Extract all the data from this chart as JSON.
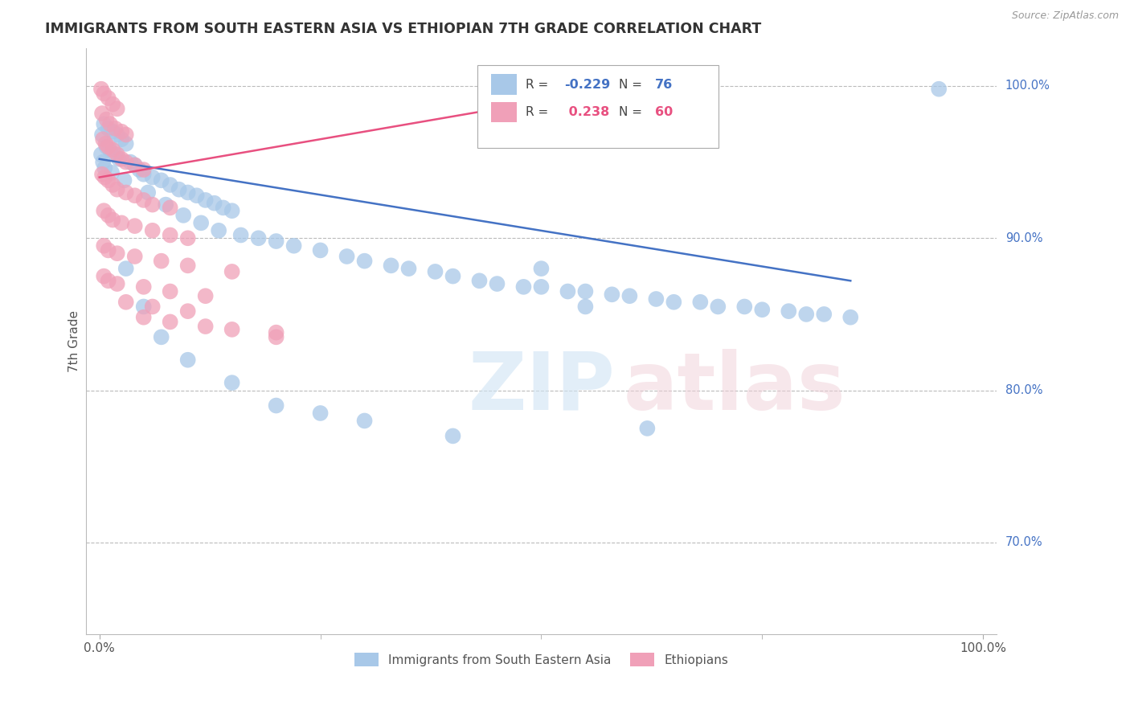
{
  "title": "IMMIGRANTS FROM SOUTH EASTERN ASIA VS ETHIOPIAN 7TH GRADE CORRELATION CHART",
  "source": "Source: ZipAtlas.com",
  "ylabel": "7th Grade",
  "legend1_label": "Immigrants from South Eastern Asia",
  "legend2_label": "Ethiopians",
  "R1": -0.229,
  "N1": 76,
  "R2": 0.238,
  "N2": 60,
  "color_blue": "#A8C8E8",
  "color_pink": "#F0A0B8",
  "color_blue_line": "#4472C4",
  "color_pink_line": "#E85080",
  "color_R_blue": "#4472C4",
  "color_R_pink": "#E85080",
  "blue_points": [
    [
      0.5,
      97.5
    ],
    [
      1.0,
      97.2
    ],
    [
      1.5,
      97.0
    ],
    [
      2.0,
      96.8
    ],
    [
      2.5,
      96.5
    ],
    [
      3.0,
      96.2
    ],
    [
      0.3,
      96.8
    ],
    [
      0.8,
      96.0
    ],
    [
      1.2,
      95.8
    ],
    [
      1.8,
      95.5
    ],
    [
      2.2,
      95.2
    ],
    [
      3.5,
      95.0
    ],
    [
      4.0,
      94.8
    ],
    [
      4.5,
      94.5
    ],
    [
      5.0,
      94.2
    ],
    [
      6.0,
      94.0
    ],
    [
      7.0,
      93.8
    ],
    [
      8.0,
      93.5
    ],
    [
      9.0,
      93.2
    ],
    [
      10.0,
      93.0
    ],
    [
      11.0,
      92.8
    ],
    [
      12.0,
      92.5
    ],
    [
      13.0,
      92.3
    ],
    [
      14.0,
      92.0
    ],
    [
      15.0,
      91.8
    ],
    [
      0.2,
      95.5
    ],
    [
      0.4,
      95.0
    ],
    [
      0.6,
      94.6
    ],
    [
      1.4,
      94.3
    ],
    [
      2.8,
      93.8
    ],
    [
      5.5,
      93.0
    ],
    [
      7.5,
      92.2
    ],
    [
      9.5,
      91.5
    ],
    [
      11.5,
      91.0
    ],
    [
      13.5,
      90.5
    ],
    [
      16.0,
      90.2
    ],
    [
      18.0,
      90.0
    ],
    [
      20.0,
      89.8
    ],
    [
      22.0,
      89.5
    ],
    [
      25.0,
      89.2
    ],
    [
      28.0,
      88.8
    ],
    [
      30.0,
      88.5
    ],
    [
      33.0,
      88.2
    ],
    [
      35.0,
      88.0
    ],
    [
      38.0,
      87.8
    ],
    [
      40.0,
      87.5
    ],
    [
      43.0,
      87.2
    ],
    [
      45.0,
      87.0
    ],
    [
      48.0,
      86.8
    ],
    [
      50.0,
      86.8
    ],
    [
      53.0,
      86.5
    ],
    [
      55.0,
      86.5
    ],
    [
      58.0,
      86.3
    ],
    [
      60.0,
      86.2
    ],
    [
      63.0,
      86.0
    ],
    [
      65.0,
      85.8
    ],
    [
      68.0,
      85.8
    ],
    [
      70.0,
      85.5
    ],
    [
      73.0,
      85.5
    ],
    [
      75.0,
      85.3
    ],
    [
      78.0,
      85.2
    ],
    [
      80.0,
      85.0
    ],
    [
      82.0,
      85.0
    ],
    [
      85.0,
      84.8
    ],
    [
      95.0,
      99.8
    ],
    [
      3.0,
      88.0
    ],
    [
      5.0,
      85.5
    ],
    [
      7.0,
      83.5
    ],
    [
      10.0,
      82.0
    ],
    [
      15.0,
      80.5
    ],
    [
      20.0,
      79.0
    ],
    [
      25.0,
      78.5
    ],
    [
      30.0,
      78.0
    ],
    [
      40.0,
      77.0
    ],
    [
      50.0,
      88.0
    ],
    [
      55.0,
      85.5
    ],
    [
      62.0,
      77.5
    ]
  ],
  "pink_points": [
    [
      0.2,
      99.8
    ],
    [
      0.5,
      99.5
    ],
    [
      1.0,
      99.2
    ],
    [
      1.5,
      98.8
    ],
    [
      2.0,
      98.5
    ],
    [
      0.3,
      98.2
    ],
    [
      0.8,
      97.8
    ],
    [
      1.2,
      97.5
    ],
    [
      1.8,
      97.2
    ],
    [
      2.5,
      97.0
    ],
    [
      3.0,
      96.8
    ],
    [
      0.4,
      96.5
    ],
    [
      0.7,
      96.2
    ],
    [
      1.0,
      96.0
    ],
    [
      1.5,
      95.8
    ],
    [
      2.0,
      95.5
    ],
    [
      2.5,
      95.2
    ],
    [
      3.0,
      95.0
    ],
    [
      4.0,
      94.8
    ],
    [
      5.0,
      94.5
    ],
    [
      0.3,
      94.2
    ],
    [
      0.6,
      94.0
    ],
    [
      1.0,
      93.8
    ],
    [
      1.5,
      93.5
    ],
    [
      2.0,
      93.2
    ],
    [
      3.0,
      93.0
    ],
    [
      4.0,
      92.8
    ],
    [
      5.0,
      92.5
    ],
    [
      6.0,
      92.2
    ],
    [
      8.0,
      92.0
    ],
    [
      0.5,
      91.8
    ],
    [
      1.0,
      91.5
    ],
    [
      1.5,
      91.2
    ],
    [
      2.5,
      91.0
    ],
    [
      4.0,
      90.8
    ],
    [
      6.0,
      90.5
    ],
    [
      8.0,
      90.2
    ],
    [
      10.0,
      90.0
    ],
    [
      0.5,
      89.5
    ],
    [
      1.0,
      89.2
    ],
    [
      2.0,
      89.0
    ],
    [
      4.0,
      88.8
    ],
    [
      7.0,
      88.5
    ],
    [
      10.0,
      88.2
    ],
    [
      15.0,
      87.8
    ],
    [
      0.5,
      87.5
    ],
    [
      1.0,
      87.2
    ],
    [
      2.0,
      87.0
    ],
    [
      5.0,
      86.8
    ],
    [
      8.0,
      86.5
    ],
    [
      12.0,
      86.2
    ],
    [
      3.0,
      85.8
    ],
    [
      6.0,
      85.5
    ],
    [
      10.0,
      85.2
    ],
    [
      5.0,
      84.8
    ],
    [
      8.0,
      84.5
    ],
    [
      12.0,
      84.2
    ],
    [
      15.0,
      84.0
    ],
    [
      20.0,
      83.8
    ],
    [
      20.0,
      83.5
    ]
  ],
  "blue_line": [
    [
      0,
      95.2
    ],
    [
      85,
      87.2
    ]
  ],
  "pink_line": [
    [
      0,
      94.0
    ],
    [
      45,
      98.5
    ]
  ],
  "ytick_vals": [
    70.0,
    80.0,
    90.0,
    100.0
  ],
  "ytick_labels": [
    "70.0%",
    "80.0%",
    "90.0%",
    "100.0%"
  ],
  "ymin": 64.0,
  "ymax": 102.5,
  "xmin": -1.5,
  "xmax": 101.5
}
